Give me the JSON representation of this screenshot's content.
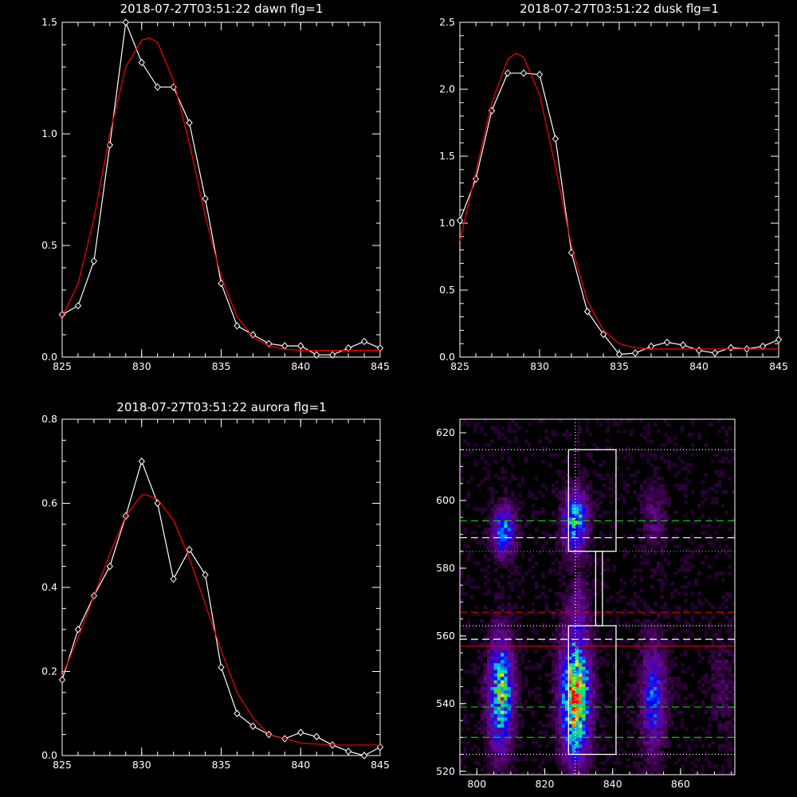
{
  "chart_data": [
    {
      "type": "line",
      "title": "2018-07-27T03:51:22 dawn flg=1",
      "xlim": [
        825,
        845
      ],
      "ylim": [
        0,
        1.5
      ],
      "xticks": [
        "825",
        "830",
        "835",
        "840",
        "845"
      ],
      "yticks": [
        "0.0",
        "0.5",
        "1.0",
        "1.5"
      ],
      "series": [
        {
          "color": "#ffffff",
          "markers": "diamond",
          "x": [
            825,
            826,
            827,
            828,
            829,
            830,
            831,
            832,
            833,
            834,
            835,
            836,
            837,
            838,
            839,
            840,
            841,
            842,
            843,
            844,
            845
          ],
          "y": [
            0.19,
            0.23,
            0.43,
            0.95,
            1.5,
            1.32,
            1.21,
            1.21,
            1.05,
            0.71,
            0.33,
            0.14,
            0.1,
            0.06,
            0.05,
            0.05,
            0.01,
            0.01,
            0.04,
            0.07,
            0.04
          ]
        },
        {
          "color": "#ff0000",
          "x": [
            825,
            826,
            827,
            828,
            829,
            830,
            830.5,
            831,
            832,
            833,
            834,
            835,
            836,
            837,
            838,
            839,
            840,
            842,
            845
          ],
          "y": [
            0.18,
            0.33,
            0.62,
            1.0,
            1.3,
            1.42,
            1.43,
            1.41,
            1.24,
            0.96,
            0.63,
            0.36,
            0.18,
            0.09,
            0.05,
            0.035,
            0.03,
            0.03,
            0.03
          ]
        }
      ]
    },
    {
      "type": "line",
      "title": "2018-07-27T03:51:22 dusk flg=1",
      "xlim": [
        825,
        845
      ],
      "ylim": [
        0,
        2.5
      ],
      "xticks": [
        "825",
        "830",
        "835",
        "840",
        "845"
      ],
      "yticks": [
        "0.0",
        "0.5",
        "1.0",
        "1.5",
        "2.0",
        "2.5"
      ],
      "series": [
        {
          "color": "#ffffff",
          "markers": "diamond",
          "x": [
            825,
            826,
            827,
            828,
            829,
            830,
            831,
            832,
            833,
            834,
            835,
            836,
            837,
            838,
            839,
            840,
            841,
            842,
            843,
            844,
            845
          ],
          "y": [
            1.02,
            1.33,
            1.84,
            2.12,
            2.12,
            2.11,
            1.63,
            0.78,
            0.34,
            0.17,
            0.02,
            0.03,
            0.08,
            0.11,
            0.09,
            0.05,
            0.03,
            0.07,
            0.06,
            0.08,
            0.13
          ]
        },
        {
          "color": "#ff0000",
          "x": [
            825,
            826,
            827,
            828,
            828.5,
            829,
            830,
            831,
            832,
            833,
            834,
            835,
            836,
            837,
            838,
            840,
            842,
            845
          ],
          "y": [
            0.87,
            1.38,
            1.9,
            2.22,
            2.27,
            2.24,
            1.96,
            1.42,
            0.83,
            0.42,
            0.2,
            0.1,
            0.07,
            0.06,
            0.06,
            0.06,
            0.06,
            0.06
          ]
        }
      ]
    },
    {
      "type": "line",
      "title": "2018-07-27T03:51:22 aurora flg=1",
      "xlim": [
        825,
        845
      ],
      "ylim": [
        0,
        0.8
      ],
      "xticks": [
        "825",
        "830",
        "835",
        "840",
        "845"
      ],
      "yticks": [
        "0.0",
        "0.2",
        "0.4",
        "0.6",
        "0.8"
      ],
      "series": [
        {
          "color": "#ffffff",
          "markers": "diamond",
          "x": [
            825,
            826,
            827,
            828,
            829,
            830,
            831,
            832,
            833,
            834,
            835,
            836,
            837,
            838,
            839,
            840,
            841,
            842,
            843,
            844,
            845
          ],
          "y": [
            0.18,
            0.3,
            0.38,
            0.45,
            0.57,
            0.7,
            0.6,
            0.42,
            0.49,
            0.43,
            0.21,
            0.1,
            0.07,
            0.05,
            0.04,
            0.055,
            0.045,
            0.025,
            0.01,
            0.0,
            0.02
          ]
        },
        {
          "color": "#ff0000",
          "x": [
            825,
            826,
            827,
            828,
            829,
            830,
            830.3,
            831,
            832,
            833,
            834,
            835,
            836,
            837,
            838,
            840,
            842,
            845
          ],
          "y": [
            0.19,
            0.28,
            0.38,
            0.48,
            0.57,
            0.62,
            0.62,
            0.61,
            0.56,
            0.47,
            0.36,
            0.25,
            0.15,
            0.09,
            0.05,
            0.03,
            0.025,
            0.025
          ]
        }
      ]
    },
    {
      "type": "heatmap",
      "xlim": [
        795,
        876
      ],
      "ylim": [
        519,
        624
      ],
      "xticks": [
        "800",
        "820",
        "840",
        "860"
      ],
      "yticks": [
        "520",
        "540",
        "560",
        "580",
        "600",
        "620"
      ],
      "blobs": [
        {
          "x": 808,
          "y": 591,
          "sx": 2.2,
          "sy": 5,
          "peak": 0.55
        },
        {
          "x": 829,
          "y": 594,
          "sx": 2.5,
          "sy": 6,
          "peak": 0.6
        },
        {
          "x": 807,
          "y": 543,
          "sx": 2.5,
          "sy": 11,
          "peak": 0.72
        },
        {
          "x": 829,
          "y": 542,
          "sx": 2.8,
          "sy": 12,
          "peak": 1.0
        },
        {
          "x": 852,
          "y": 542,
          "sx": 2.5,
          "sy": 11,
          "peak": 0.42
        },
        {
          "x": 830,
          "y": 570,
          "sx": 2.5,
          "sy": 6,
          "peak": 0.14
        },
        {
          "x": 852,
          "y": 595,
          "sx": 2.5,
          "sy": 7,
          "peak": 0.16
        },
        {
          "x": 872,
          "y": 545,
          "sx": 2.5,
          "sy": 10,
          "peak": 0.1
        }
      ],
      "boxes": [
        {
          "x1": 827,
          "x2": 841,
          "y1": 585,
          "y2": 615
        },
        {
          "x1": 835,
          "x2": 837,
          "y1": 563,
          "y2": 585
        },
        {
          "x1": 827,
          "x2": 841,
          "y1": 525,
          "y2": 563
        }
      ],
      "hlines": [
        {
          "y": 615,
          "color": "#ffffff",
          "dash": "dot"
        },
        {
          "y": 594,
          "color": "#00d000",
          "dash": "dash"
        },
        {
          "y": 589,
          "color": "#ffffff",
          "dash": "dash"
        },
        {
          "y": 585,
          "color": "#00d000",
          "dash": "dot"
        },
        {
          "y": 567,
          "color": "#d00000",
          "dash": "dash"
        },
        {
          "y": 563,
          "color": "#ffffff",
          "dash": "dot"
        },
        {
          "y": 559,
          "color": "#ffffff",
          "dash": "dash"
        },
        {
          "y": 557,
          "color": "#d00000",
          "dash": "solid"
        },
        {
          "y": 539,
          "color": "#00d000",
          "dash": "dash"
        },
        {
          "y": 530,
          "color": "#00d000",
          "dash": "dash"
        },
        {
          "y": 525,
          "color": "#ffffff",
          "dash": "dot"
        }
      ],
      "vlines": [
        {
          "x": 829,
          "color": "#ffffff",
          "dash": "dot"
        },
        {
          "x": 830,
          "color": "#cc44cc",
          "dash": "dot"
        }
      ]
    }
  ]
}
